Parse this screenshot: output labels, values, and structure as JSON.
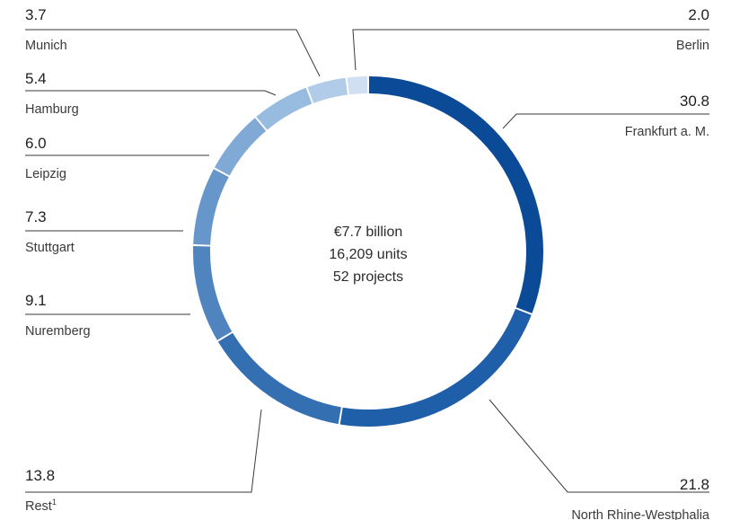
{
  "chart_data": {
    "type": "pie",
    "variant": "donut",
    "center_text": [
      "€7.7 billion",
      "16,209 units",
      "52 projects"
    ],
    "slices": [
      {
        "label": "Frankfurt a. M.",
        "value": 30.8,
        "color": "#0a4a97"
      },
      {
        "label": "North Rhine-Westphalia",
        "value": 21.8,
        "color": "#1f5ea8"
      },
      {
        "label": "Rest",
        "footnote": "1",
        "value": 13.8,
        "color": "#346fb2"
      },
      {
        "label": "Nuremberg",
        "value": 9.1,
        "color": "#4f84bf"
      },
      {
        "label": "Stuttgart",
        "value": 7.3,
        "color": "#6796cb"
      },
      {
        "label": "Leipzig",
        "value": 6.0,
        "color": "#80a9d6"
      },
      {
        "label": "Hamburg",
        "value": 5.4,
        "color": "#98bbe0"
      },
      {
        "label": "Munich",
        "value": 3.7,
        "color": "#b1cce8"
      },
      {
        "label": "Berlin",
        "value": 2.0,
        "color": "#d0e0f2"
      }
    ]
  }
}
